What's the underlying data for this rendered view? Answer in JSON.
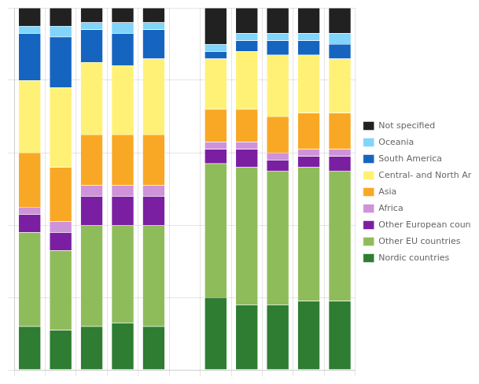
{
  "chart_data": {
    "type": "bar",
    "stacked": true,
    "grid": true,
    "tick_labels": false,
    "legend": "right",
    "categories": [
      null,
      null,
      null,
      null,
      null,
      null,
      null,
      null,
      null,
      null,
      null
    ],
    "ylim": [
      0,
      100
    ],
    "yticks": [
      0,
      20,
      40,
      60,
      80,
      100
    ],
    "series": [
      {
        "name": "Nordic countries",
        "color": "#2e7d32",
        "values": [
          12,
          11,
          12,
          13,
          12,
          null,
          20,
          18,
          18,
          19,
          19
        ]
      },
      {
        "name": "Other EU countries",
        "color": "#8fbc5a",
        "values": [
          26,
          22,
          28,
          27,
          28,
          null,
          37,
          38,
          37,
          37,
          36
        ]
      },
      {
        "name": "Other European countries",
        "color": "#7b1fa2",
        "values": [
          5,
          5,
          8,
          8,
          8,
          null,
          4,
          5,
          3,
          3,
          4
        ]
      },
      {
        "name": "Africa",
        "color": "#ce93d8",
        "values": [
          2,
          3,
          3,
          3,
          3,
          null,
          2,
          2,
          2,
          2,
          2
        ]
      },
      {
        "name": "Asia",
        "color": "#f9a825",
        "values": [
          15,
          15,
          14,
          14,
          14,
          null,
          9,
          9,
          10,
          10,
          10
        ]
      },
      {
        "name": "Central- and North America",
        "color": "#fff176",
        "values": [
          20,
          22,
          20,
          19,
          21,
          null,
          14,
          16,
          17,
          16,
          15
        ]
      },
      {
        "name": "South America",
        "color": "#1565c0",
        "values": [
          13,
          14,
          9,
          9,
          8,
          null,
          2,
          3,
          4,
          4,
          4
        ]
      },
      {
        "name": "Oceania",
        "color": "#81d4fa",
        "values": [
          2,
          3,
          2,
          3,
          2,
          null,
          2,
          2,
          2,
          2,
          3
        ]
      },
      {
        "name": "Not specified",
        "color": "#212121",
        "values": [
          5,
          5,
          4,
          4,
          4,
          null,
          10,
          7,
          7,
          7,
          7
        ]
      }
    ]
  }
}
